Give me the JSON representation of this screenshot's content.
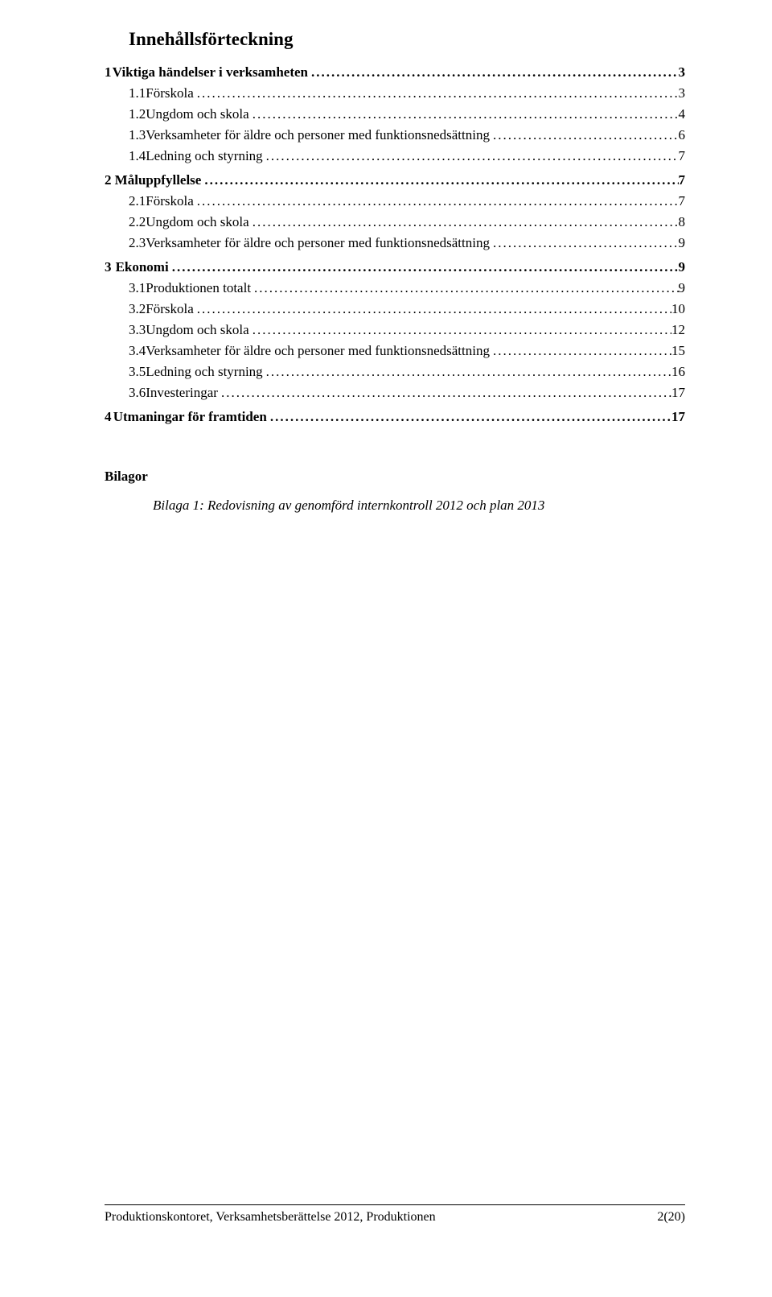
{
  "colors": {
    "background": "#ffffff",
    "text": "#000000",
    "rule": "#000000"
  },
  "typography": {
    "family": "Times New Roman",
    "title_size_pt": 17,
    "body_size_pt": 13,
    "footer_size_pt": 12
  },
  "toc": {
    "title": "Innehållsförteckning",
    "entries": [
      {
        "level": 1,
        "num": "1",
        "label": "Viktiga händelser i verksamheten",
        "page": "3"
      },
      {
        "level": 2,
        "num": "1.1",
        "label": "Förskola",
        "page": "3"
      },
      {
        "level": 2,
        "num": "1.2",
        "label": "Ungdom och skola",
        "page": "4"
      },
      {
        "level": 2,
        "num": "1.3",
        "label": "Verksamheter för äldre och personer med funktionsnedsättning",
        "page": "6"
      },
      {
        "level": 2,
        "num": "1.4",
        "label": "Ledning och styrning",
        "page": "7"
      },
      {
        "level": 1,
        "num": "2",
        "label": "Måluppfyllelse",
        "page": "7"
      },
      {
        "level": 2,
        "num": "2.1",
        "label": "Förskola",
        "page": "7"
      },
      {
        "level": 2,
        "num": "2.2",
        "label": "Ungdom och skola",
        "page": "8"
      },
      {
        "level": 2,
        "num": "2.3",
        "label": "Verksamheter för äldre och personer med funktionsnedsättning",
        "page": "9"
      },
      {
        "level": 1,
        "num": "3",
        "label": "Ekonomi",
        "page": "9"
      },
      {
        "level": 2,
        "num": "3.1",
        "label": "Produktionen totalt",
        "page": "9"
      },
      {
        "level": 2,
        "num": "3.2",
        "label": "Förskola",
        "page": "10"
      },
      {
        "level": 2,
        "num": "3.3",
        "label": "Ungdom och skola",
        "page": "12"
      },
      {
        "level": 2,
        "num": "3.4",
        "label": "Verksamheter för äldre och personer med funktionsnedsättning",
        "page": "15"
      },
      {
        "level": 2,
        "num": "3.5",
        "label": "Ledning och styrning",
        "page": "16"
      },
      {
        "level": 2,
        "num": "3.6",
        "label": "Investeringar",
        "page": "17"
      },
      {
        "level": 1,
        "num": "4",
        "label": "Utmaningar för framtiden",
        "page": "17"
      }
    ]
  },
  "appendix": {
    "heading": "Bilagor",
    "items": [
      "Bilaga 1: Redovisning av genomförd internkontroll 2012 och plan 2013"
    ]
  },
  "footer": {
    "left": "Produktionskontoret, Verksamhetsberättelse 2012, Produktionen",
    "right": "2(20)"
  }
}
